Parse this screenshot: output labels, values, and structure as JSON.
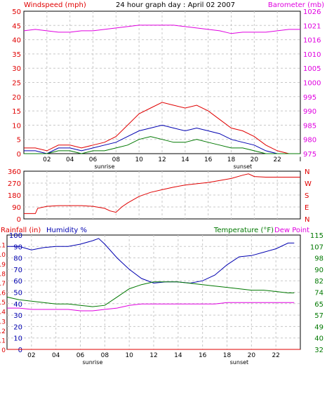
{
  "colors": {
    "red": "#e00000",
    "blue": "#0000b0",
    "green": "#007800",
    "magenta": "#e000e0",
    "grid": "#c8c8c8",
    "frame": "#000000"
  },
  "chart_data": [
    {
      "type": "line",
      "title": "24 hour graph day : April 02 2007",
      "left_axis_label": "Windspeed (mph)",
      "right_axis_label": "Barometer (mb)",
      "x_tick_labels": [
        "02",
        "04",
        "06",
        "08",
        "10",
        "12",
        "14",
        "16",
        "18",
        "20",
        "22",
        "I"
      ],
      "x_tick_hours": [
        2,
        4,
        6,
        8,
        10,
        12,
        14,
        16,
        18,
        20,
        22,
        24
      ],
      "x_range_hours": [
        0,
        24
      ],
      "markers": [
        {
          "label": "sunrise",
          "hour": 7
        },
        {
          "label": "sunset",
          "hour": 19
        }
      ],
      "left_ticks": [
        "0",
        "5",
        "10",
        "15",
        "20",
        "25",
        "30",
        "35",
        "40",
        "45",
        "50"
      ],
      "left_range": [
        0,
        50
      ],
      "right_ticks": [
        "975",
        "980",
        "985",
        "990",
        "995",
        "1000",
        "1005",
        "1010",
        "1016",
        "1021",
        "1026"
      ],
      "right_range": [
        975,
        1026
      ],
      "grid": true,
      "series": [
        {
          "axis": "right",
          "color_key": "magenta",
          "x": [
            0,
            1,
            2,
            3,
            4,
            5,
            6,
            7,
            8,
            9,
            10,
            11,
            12,
            13,
            14,
            15,
            16,
            17,
            18,
            19,
            20,
            21,
            22,
            23,
            24
          ],
          "y": [
            1019,
            1019.5,
            1019,
            1018.5,
            1018.5,
            1019,
            1019,
            1019.5,
            1020,
            1020.5,
            1021,
            1021,
            1021,
            1021,
            1020.5,
            1020,
            1019.5,
            1019,
            1018,
            1018.5,
            1018.5,
            1018.5,
            1019,
            1019.5,
            1019.5
          ]
        },
        {
          "axis": "left",
          "color_key": "red",
          "x": [
            0,
            1,
            2,
            3,
            4,
            5,
            6,
            7,
            8,
            9,
            10,
            11,
            12,
            13,
            14,
            15,
            16,
            17,
            18,
            19,
            20,
            21,
            22,
            23,
            24
          ],
          "y": [
            2,
            2,
            1,
            3,
            3,
            2,
            3,
            4,
            6,
            10,
            14,
            16,
            18,
            17,
            16,
            17,
            15,
            12,
            9,
            8,
            6,
            3,
            1,
            0,
            0
          ]
        },
        {
          "axis": "left",
          "color_key": "blue",
          "x": [
            0,
            1,
            2,
            3,
            4,
            5,
            6,
            7,
            8,
            9,
            10,
            11,
            12,
            13,
            14,
            15,
            16,
            17,
            18,
            19,
            20,
            21,
            22,
            23,
            24
          ],
          "y": [
            1,
            1,
            0,
            2,
            2,
            1,
            2,
            3,
            4,
            6,
            8,
            9,
            10,
            9,
            8,
            9,
            8,
            7,
            5,
            4,
            3,
            1,
            0,
            0,
            0
          ]
        },
        {
          "axis": "left",
          "color_key": "green",
          "x": [
            0,
            1,
            2,
            3,
            4,
            5,
            6,
            7,
            8,
            9,
            10,
            11,
            12,
            13,
            14,
            15,
            16,
            17,
            18,
            19,
            20,
            21,
            22,
            23,
            24
          ],
          "y": [
            0,
            0,
            0,
            1,
            1,
            0,
            1,
            1,
            2,
            3,
            5,
            6,
            5,
            4,
            4,
            5,
            4,
            3,
            2,
            2,
            1,
            0,
            0,
            0,
            0
          ]
        }
      ]
    },
    {
      "type": "line",
      "left_ticks": [
        "0",
        "90",
        "180",
        "270",
        "360"
      ],
      "left_range": [
        0,
        360
      ],
      "right_ticks": [
        "N",
        "W",
        "S",
        "E",
        "N"
      ],
      "grid": true,
      "series": [
        {
          "axis": "left",
          "color_key": "red",
          "x": [
            0,
            1,
            1.2,
            2,
            3,
            4,
            5,
            6,
            7,
            7.5,
            8,
            8.5,
            9,
            10,
            11,
            12,
            13,
            14,
            15,
            16,
            17,
            18,
            19,
            19.5,
            20,
            21,
            22,
            23,
            24
          ],
          "y": [
            40,
            40,
            80,
            95,
            100,
            100,
            100,
            95,
            80,
            60,
            50,
            90,
            120,
            170,
            200,
            220,
            240,
            255,
            265,
            275,
            290,
            305,
            330,
            340,
            320,
            315,
            315,
            315,
            315
          ]
        }
      ]
    },
    {
      "type": "line",
      "left_axis_label": "Rainfall (in)",
      "left_axis_label_2": "Humidity %",
      "right_axis_label": "Temperature (°F)",
      "right_axis_label_2": "Dew Point",
      "x_tick_labels": [
        "02",
        "04",
        "06",
        "08",
        "10",
        "12",
        "14",
        "16",
        "18",
        "20",
        "22"
      ],
      "x_tick_hours": [
        2,
        4,
        6,
        8,
        10,
        12,
        14,
        16,
        18,
        20,
        22
      ],
      "x_range_hours": [
        0,
        24
      ],
      "markers": [
        {
          "label": "sunrise",
          "hour": 7
        },
        {
          "label": "sunset",
          "hour": 19
        }
      ],
      "rain_ticks": [
        "0",
        "0.1",
        "0.2",
        "0.3",
        "0.4",
        "0.5",
        "0.6",
        "0.7",
        "0.8",
        "0.9",
        "1.0",
        "1.1"
      ],
      "rain_range": [
        0,
        1.2
      ],
      "humidity_ticks": [
        "0",
        "10",
        "20",
        "30",
        "40",
        "50",
        "60",
        "70",
        "80",
        "90",
        "100"
      ],
      "humidity_range": [
        0,
        100
      ],
      "temp_ticks": [
        "32",
        "40",
        "49",
        "57",
        "65",
        "74",
        "82",
        "90",
        "98",
        "107",
        "115"
      ],
      "temp_range": [
        32,
        115
      ],
      "grid": true,
      "series": [
        {
          "axis": "humidity",
          "color_key": "blue",
          "x": [
            0,
            1,
            2,
            3,
            4,
            5,
            6,
            7,
            7.5,
            8,
            9,
            10,
            11,
            12,
            13,
            14,
            15,
            16,
            17,
            18,
            19,
            20,
            21,
            22,
            23,
            23.5
          ],
          "y": [
            90,
            90,
            87,
            89,
            90,
            90,
            92,
            95,
            97,
            92,
            80,
            70,
            62,
            58,
            59,
            59,
            58,
            60,
            65,
            74,
            81,
            82,
            85,
            88,
            93,
            93
          ]
        },
        {
          "axis": "temp",
          "color_key": "green",
          "x": [
            0,
            1,
            2,
            3,
            4,
            5,
            6,
            7,
            8,
            9,
            10,
            11,
            12,
            13,
            14,
            15,
            16,
            17,
            18,
            19,
            20,
            21,
            22,
            23,
            23.5
          ],
          "y": [
            70,
            68,
            67,
            66,
            65,
            65,
            64,
            63,
            64,
            70,
            76,
            79,
            81,
            81,
            81,
            80,
            79,
            78,
            77,
            76,
            75,
            75,
            74,
            73,
            73
          ]
        },
        {
          "axis": "temp",
          "color_key": "magenta",
          "x": [
            0,
            1,
            2,
            3,
            4,
            5,
            6,
            7,
            8,
            9,
            10,
            11,
            12,
            13,
            14,
            15,
            16,
            17,
            18,
            19,
            20,
            21,
            22,
            23,
            23.5
          ],
          "y": [
            62,
            62,
            61,
            61,
            61,
            61,
            60,
            60,
            61,
            62,
            64,
            65,
            65,
            65,
            65,
            65,
            65,
            65,
            66,
            66,
            66,
            66,
            66,
            66,
            66
          ]
        },
        {
          "axis": "rain",
          "color_key": "red",
          "x": [
            0,
            24
          ],
          "y": [
            0,
            0
          ]
        }
      ]
    }
  ]
}
